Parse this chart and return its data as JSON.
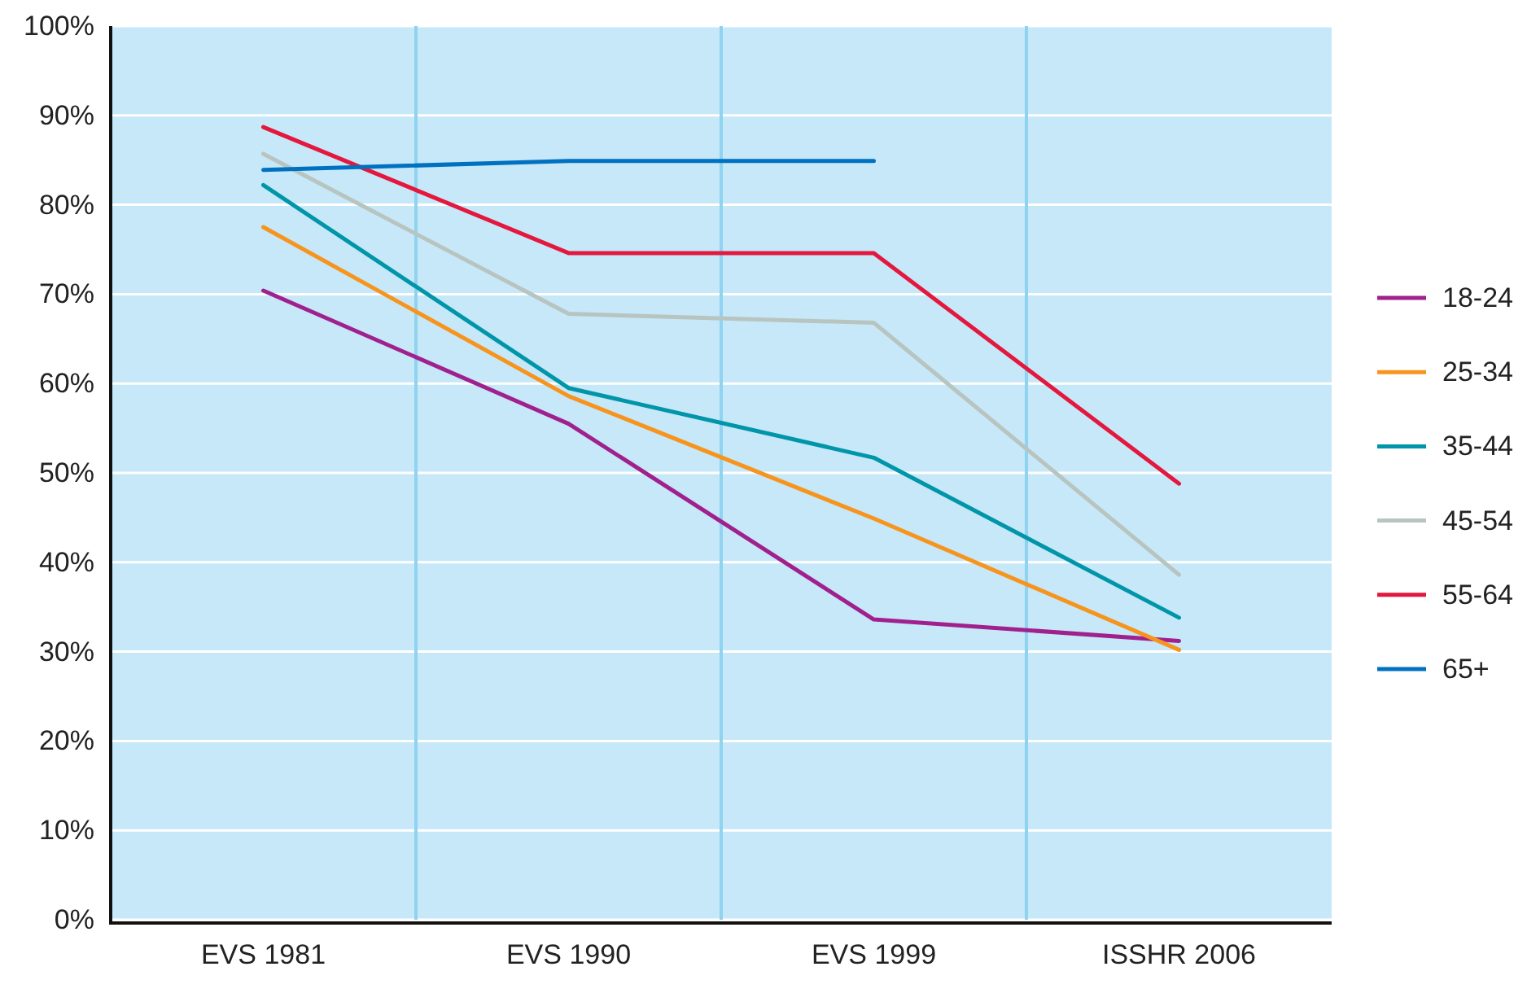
{
  "chart_data": {
    "type": "line",
    "categories": [
      "EVS 1981",
      "EVS 1990",
      "EVS 1999",
      "ISSHR 2006"
    ],
    "series": [
      {
        "name": "18-24",
        "color": "#a0208e",
        "values": [
          70.4,
          55.5,
          33.6,
          31.2
        ]
      },
      {
        "name": "25-34",
        "color": "#f7941d",
        "values": [
          77.5,
          58.6,
          44.9,
          30.2
        ]
      },
      {
        "name": "35-44",
        "color": "#0095a8",
        "values": [
          82.2,
          59.5,
          51.7,
          33.8
        ]
      },
      {
        "name": "45-54",
        "color": "#b8c4c0",
        "values": [
          85.7,
          67.8,
          66.8,
          38.6
        ]
      },
      {
        "name": "55-64",
        "color": "#e4173e",
        "values": [
          88.7,
          74.6,
          74.6,
          48.8
        ]
      },
      {
        "name": "65+",
        "color": "#0070c0",
        "values": [
          83.9,
          84.9,
          84.9,
          null
        ]
      }
    ],
    "ylim": [
      0,
      100
    ],
    "yticks": [
      {
        "value": 0,
        "label": "0%"
      },
      {
        "value": 10,
        "label": "10%"
      },
      {
        "value": 20,
        "label": "20%"
      },
      {
        "value": 30,
        "label": "30%"
      },
      {
        "value": 40,
        "label": "40%"
      },
      {
        "value": 50,
        "label": "50%"
      },
      {
        "value": 60,
        "label": "60%"
      },
      {
        "value": 70,
        "label": "70%"
      },
      {
        "value": 80,
        "label": "80%"
      },
      {
        "value": 90,
        "label": "90%"
      },
      {
        "value": 100,
        "label": "100%"
      }
    ],
    "grid": "y",
    "legend": "right",
    "marker": "none",
    "line_style": "solid"
  }
}
